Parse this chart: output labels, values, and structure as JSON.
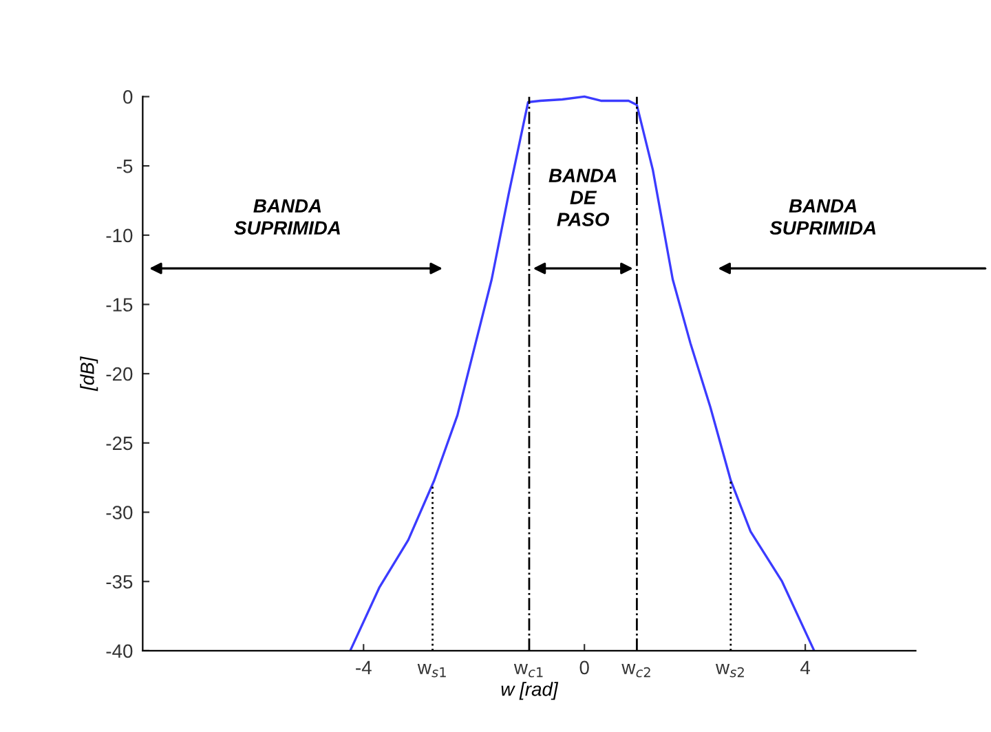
{
  "chart_data": {
    "type": "line",
    "xlabel": "w [rad]",
    "ylabel": "[dB]",
    "x": [
      -4.23,
      -3.71,
      -3.19,
      -2.72,
      -2.3,
      -1.68,
      -1.37,
      -1.02,
      -0.8,
      -0.4,
      0,
      0.3,
      0.8,
      0.95,
      1.24,
      1.6,
      1.92,
      2.28,
      2.65,
      3.01,
      3.58,
      4.15
    ],
    "series": [
      {
        "color": "#3b3bff",
        "values": [
          -39.9,
          -35.4,
          -32.0,
          -27.7,
          -23.0,
          -13.2,
          -7.0,
          -0.4,
          -0.3,
          -0.2,
          0,
          -0.3,
          -0.3,
          -0.6,
          -5.3,
          -13.2,
          -17.8,
          -22.4,
          -27.7,
          -31.4,
          -35.0,
          -39.9
        ]
      }
    ],
    "xlim": [
      -8,
      6
    ],
    "ylim": [
      -40,
      0
    ],
    "xticks": [
      -4,
      0,
      4
    ],
    "yticks": [
      -40,
      -35,
      -30,
      -25,
      -20,
      -15,
      -10,
      -5,
      0
    ],
    "ref_lines": [
      {
        "axis": "x",
        "value": -2.75,
        "line_style": "dotted",
        "color": "#000000",
        "label": "w$_{s1}$"
      },
      {
        "axis": "x",
        "value": -1,
        "line_style": "dashdot",
        "color": "#000000",
        "label": "w$_{c1}$"
      },
      {
        "axis": "x",
        "value": 0.95,
        "line_style": "dashdot",
        "color": "#000000",
        "label": "w$_{c2}$"
      },
      {
        "axis": "x",
        "value": 2.65,
        "line_style": "dotted",
        "color": "#000000",
        "label": "w$_{s2}$"
      }
    ],
    "annotations": [
      "BANDA\nSUPRIMIDA",
      "BANDA\nDE\nPASO",
      "BANDA\nSUPRIMIDA"
    ],
    "grid": false,
    "marker": "none",
    "line_style": "solid"
  }
}
